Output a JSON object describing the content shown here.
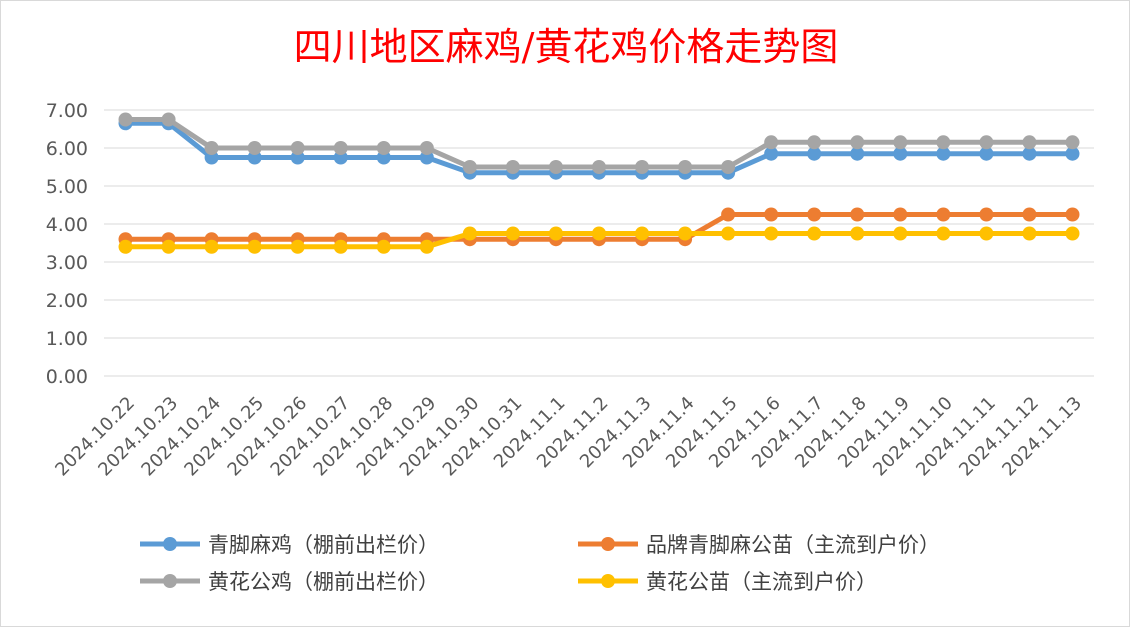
{
  "chart_data": {
    "type": "line",
    "title": "四川地区麻鸡/黄花鸡价格走势图",
    "xlabel": "",
    "ylabel": "",
    "categories": [
      "2024.10.22",
      "2024.10.23",
      "2024.10.24",
      "2024.10.25",
      "2024.10.26",
      "2024.10.27",
      "2024.10.28",
      "2024.10.29",
      "2024.10.30",
      "2024.10.31",
      "2024.11.1",
      "2024.11.2",
      "2024.11.3",
      "2024.11.4",
      "2024.11.5",
      "2024.11.6",
      "2024.11.7",
      "2024.11.8",
      "2024.11.9",
      "2024.11.10",
      "2024.11.11",
      "2024.11.12",
      "2024.11.13"
    ],
    "ylim": [
      0,
      7
    ],
    "yticks": [
      "0.00",
      "1.00",
      "2.00",
      "3.00",
      "4.00",
      "5.00",
      "6.00",
      "7.00"
    ],
    "grid": true,
    "legend_position": "bottom",
    "series": [
      {
        "name": "青脚麻鸡（棚前出栏价）",
        "color": "#5b9bd5",
        "values": [
          6.65,
          6.65,
          5.75,
          5.75,
          5.75,
          5.75,
          5.75,
          5.75,
          5.35,
          5.35,
          5.35,
          5.35,
          5.35,
          5.35,
          5.35,
          5.85,
          5.85,
          5.85,
          5.85,
          5.85,
          5.85,
          5.85,
          5.85
        ]
      },
      {
        "name": "品牌青脚麻公苗（主流到户价）",
        "color": "#ed7d31",
        "values": [
          3.6,
          3.6,
          3.6,
          3.6,
          3.6,
          3.6,
          3.6,
          3.6,
          3.6,
          3.6,
          3.6,
          3.6,
          3.6,
          3.6,
          4.25,
          4.25,
          4.25,
          4.25,
          4.25,
          4.25,
          4.25,
          4.25,
          4.25
        ]
      },
      {
        "name": "黄花公鸡（棚前出栏价）",
        "color": "#a5a5a5",
        "values": [
          6.75,
          6.75,
          6.0,
          6.0,
          6.0,
          6.0,
          6.0,
          6.0,
          5.5,
          5.5,
          5.5,
          5.5,
          5.5,
          5.5,
          5.5,
          6.15,
          6.15,
          6.15,
          6.15,
          6.15,
          6.15,
          6.15,
          6.15
        ]
      },
      {
        "name": "黄花公苗（主流到户价）",
        "color": "#ffc000",
        "values": [
          3.4,
          3.4,
          3.4,
          3.4,
          3.4,
          3.4,
          3.4,
          3.4,
          3.75,
          3.75,
          3.75,
          3.75,
          3.75,
          3.75,
          3.75,
          3.75,
          3.75,
          3.75,
          3.75,
          3.75,
          3.75,
          3.75,
          3.75
        ]
      }
    ]
  }
}
